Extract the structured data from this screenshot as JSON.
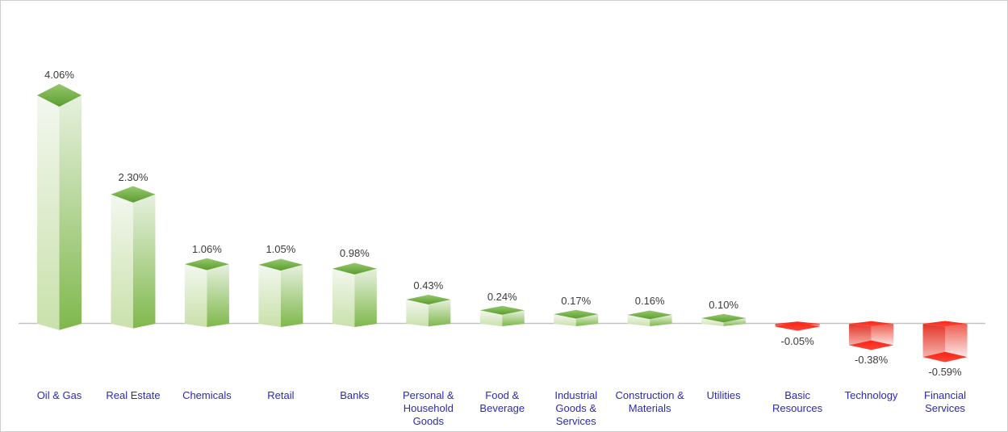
{
  "chart_data": {
    "type": "bar",
    "style": "3d-prism-columns",
    "title": "",
    "unit": "%",
    "baseline_value": 0,
    "legend": "none",
    "grid": "off",
    "categories": [
      "Oil & Gas",
      "Real Estate",
      "Chemicals",
      "Retail",
      "Banks",
      "Personal &\nHousehold\nGoods",
      "Food &\nBeverage",
      "Industrial\nGoods &\nServices",
      "Construction &\nMaterials",
      "Utilities",
      "Basic\nResources",
      "Technology",
      "Financial\nServices"
    ],
    "values": [
      4.06,
      2.3,
      1.06,
      1.05,
      0.98,
      0.43,
      0.24,
      0.17,
      0.16,
      0.1,
      -0.05,
      -0.38,
      -0.59
    ],
    "value_labels": [
      "4.06%",
      "2.30%",
      "1.06%",
      "1.05%",
      "0.98%",
      "0.43%",
      "0.24%",
      "0.17%",
      "0.16%",
      "0.10%",
      "-0.05%",
      "-0.38%",
      "-0.59%"
    ],
    "colors": {
      "positive_left_top": "#f3f7ef",
      "positive_left_bottom": "#c9e1ab",
      "positive_right_top": "#e7f1df",
      "positive_right_bottom": "#7fb84c",
      "positive_cap_top": "#96c96c",
      "positive_cap_bottom": "#5c9c30",
      "negative_left_top": "#e43427",
      "negative_left_bottom": "#f6beb8",
      "negative_right_top": "#ee5d50",
      "negative_right_bottom": "#fdf4f3",
      "negative_cap_top": "#fa2414",
      "negative_cap_bottom": "#f8473a",
      "baseline": "#c2c2c2",
      "value_label": "#3b3b3b",
      "category_label": "#2a2ab5",
      "frame_border": "#cdcdcd",
      "background": "#ffffff"
    }
  }
}
